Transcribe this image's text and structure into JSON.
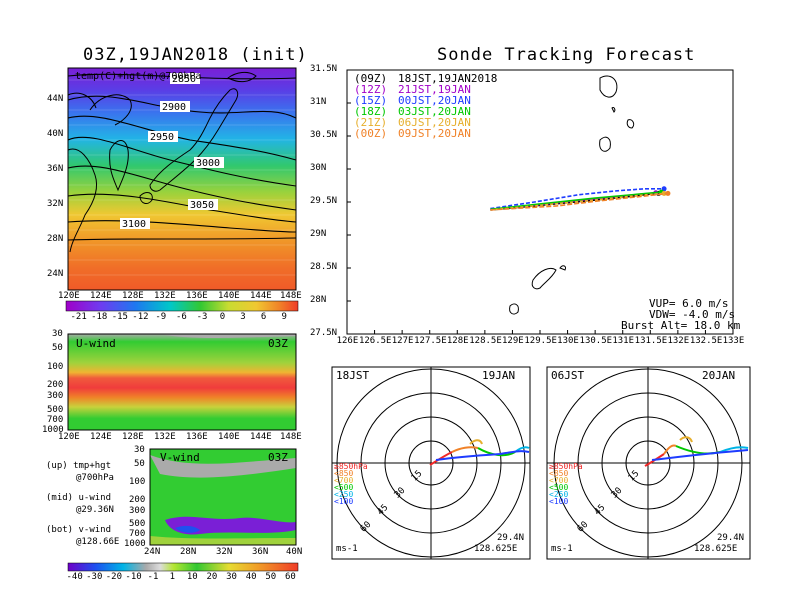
{
  "left_title": "03Z,19JAN2018 (init)",
  "right_title": "Sonde Tracking Forecast",
  "map_panel": {
    "label": "temp(C)+hgt(m)@700hPa",
    "lat_ticks": [
      "44N",
      "40N",
      "36N",
      "32N",
      "28N",
      "24N"
    ],
    "lon_ticks": [
      "120E",
      "124E",
      "128E",
      "132E",
      "136E",
      "140E",
      "144E",
      "148E"
    ],
    "contours": [
      "2850",
      "2900",
      "2950",
      "3000",
      "3050",
      "3100"
    ],
    "colorbar": [
      "-21",
      "-18",
      "-15",
      "-12",
      "-9",
      "-6",
      "-3",
      "0",
      "3",
      "6",
      "9"
    ]
  },
  "uwind_panel": {
    "label": "U-wind",
    "time": "03Z",
    "p_ticks": [
      "30",
      "50",
      "100",
      "200",
      "300",
      "500",
      "700",
      "1000"
    ],
    "lon_ticks": [
      "120E",
      "124E",
      "128E",
      "132E",
      "136E",
      "140E",
      "144E",
      "148E"
    ]
  },
  "vwind_panel": {
    "label": "V-wind",
    "time": "03Z",
    "p_ticks": [
      "30",
      "50",
      "100",
      "200",
      "300",
      "500",
      "700",
      "1000"
    ],
    "lat_ticks": [
      "24N",
      "28N",
      "32N",
      "36N",
      "40N"
    ],
    "colorbar": [
      "-40",
      "-30",
      "-20",
      "-10",
      "-1",
      "1",
      "10",
      "20",
      "30",
      "40",
      "50",
      "60"
    ]
  },
  "notes": [
    [
      "(up) tmp+hgt",
      "@700hPa"
    ],
    [
      "(mid) u-wind",
      "@29.36N"
    ],
    [
      "(bot) v-wind",
      "@128.66E"
    ]
  ],
  "track_panel": {
    "legend": [
      {
        "z": "(09Z)",
        "text": "18JST,19JAN2018",
        "color": "#000000"
      },
      {
        "z": "(12Z)",
        "text": "21JST,19JAN",
        "color": "#a000c8"
      },
      {
        "z": "(15Z)",
        "text": "00JST,20JAN",
        "color": "#1e3cff"
      },
      {
        "z": "(18Z)",
        "text": "03JST,20JAN",
        "color": "#00c800"
      },
      {
        "z": "(21Z)",
        "text": "06JST,20JAN",
        "color": "#e6af2d"
      },
      {
        "z": "(00Z)",
        "text": "09JST,20JAN",
        "color": "#f08228"
      }
    ],
    "params": [
      "VUP=  6.0 m/s",
      "VDW= -4.0 m/s",
      "Burst Alt= 18.0 km"
    ]
  },
  "hodographs": [
    {
      "left": "18JST",
      "right": "19JAN",
      "lat": "29.4N",
      "lon": "128.625E",
      "unit": "ms-1"
    },
    {
      "left": "06JST",
      "right": "20JAN",
      "lat": "29.4N",
      "lon": "128.625E",
      "unit": "ms-1"
    }
  ],
  "ring_labels": [
    "15",
    "30",
    "45",
    "60"
  ],
  "pressure_legend": [
    {
      "text": "≥850hPa",
      "color": "#f02828"
    },
    {
      "text": "<850",
      "color": "#f08228"
    },
    {
      "text": "<700",
      "color": "#e6af2d"
    },
    {
      "text": "<500",
      "color": "#00c800"
    },
    {
      "text": "<250",
      "color": "#00b4e6"
    },
    {
      "text": "<100",
      "color": "#1e3cff"
    }
  ],
  "colors": {
    "sonde_track": "#000000",
    "track_12z": "#a000c8",
    "track_15z": "#1e3cff",
    "track_18z": "#00c800",
    "track_21z": "#e6af2d",
    "track_00z": "#f08228"
  },
  "chart_data": [
    {
      "type": "line",
      "title": "Sonde Tracking Forecast",
      "xlim": [
        126,
        133
      ],
      "ylim": [
        27.5,
        31.5
      ],
      "x_ticks": [
        "126E",
        "126.5E",
        "127E",
        "127.5E",
        "128E",
        "128.5E",
        "129E",
        "129.5E",
        "130E",
        "130.5E",
        "131E",
        "131.5E",
        "132E",
        "132.5E",
        "133E"
      ],
      "y_ticks": [
        "27.5N",
        "28N",
        "28.5N",
        "29N",
        "29.5N",
        "30N",
        "30.5N",
        "31N",
        "31.5N"
      ],
      "series": [
        {
          "name": "18JST,19JAN2018",
          "x": [
            128.6,
            129.5,
            130.5,
            131.2,
            131.5,
            131.65
          ],
          "y": [
            29.38,
            29.45,
            29.53,
            29.59,
            29.62,
            29.63
          ]
        },
        {
          "name": "21JST,19JAN",
          "x": [
            128.6,
            129.5,
            130.5,
            131.2,
            131.6
          ],
          "y": [
            29.39,
            29.46,
            29.55,
            29.61,
            29.64
          ]
        },
        {
          "name": "00JST,20JAN",
          "x": [
            128.6,
            129.4,
            130.2,
            130.9,
            131.4,
            131.75
          ],
          "y": [
            29.4,
            29.5,
            29.61,
            29.67,
            29.7,
            29.7
          ]
        },
        {
          "name": "03JST,20JAN",
          "x": [
            128.6,
            129.5,
            130.5,
            131.3,
            131.7
          ],
          "y": [
            29.39,
            29.47,
            29.56,
            29.62,
            29.65
          ]
        },
        {
          "name": "06JST,20JAN",
          "x": [
            128.6,
            129.5,
            130.5,
            131.3,
            131.75
          ],
          "y": [
            29.38,
            29.45,
            29.53,
            29.6,
            29.63
          ]
        },
        {
          "name": "09JST,20JAN",
          "x": [
            128.6,
            129.8,
            130.6,
            131.4,
            131.82
          ],
          "y": [
            29.38,
            29.44,
            29.52,
            29.59,
            29.63
          ]
        }
      ]
    }
  ]
}
